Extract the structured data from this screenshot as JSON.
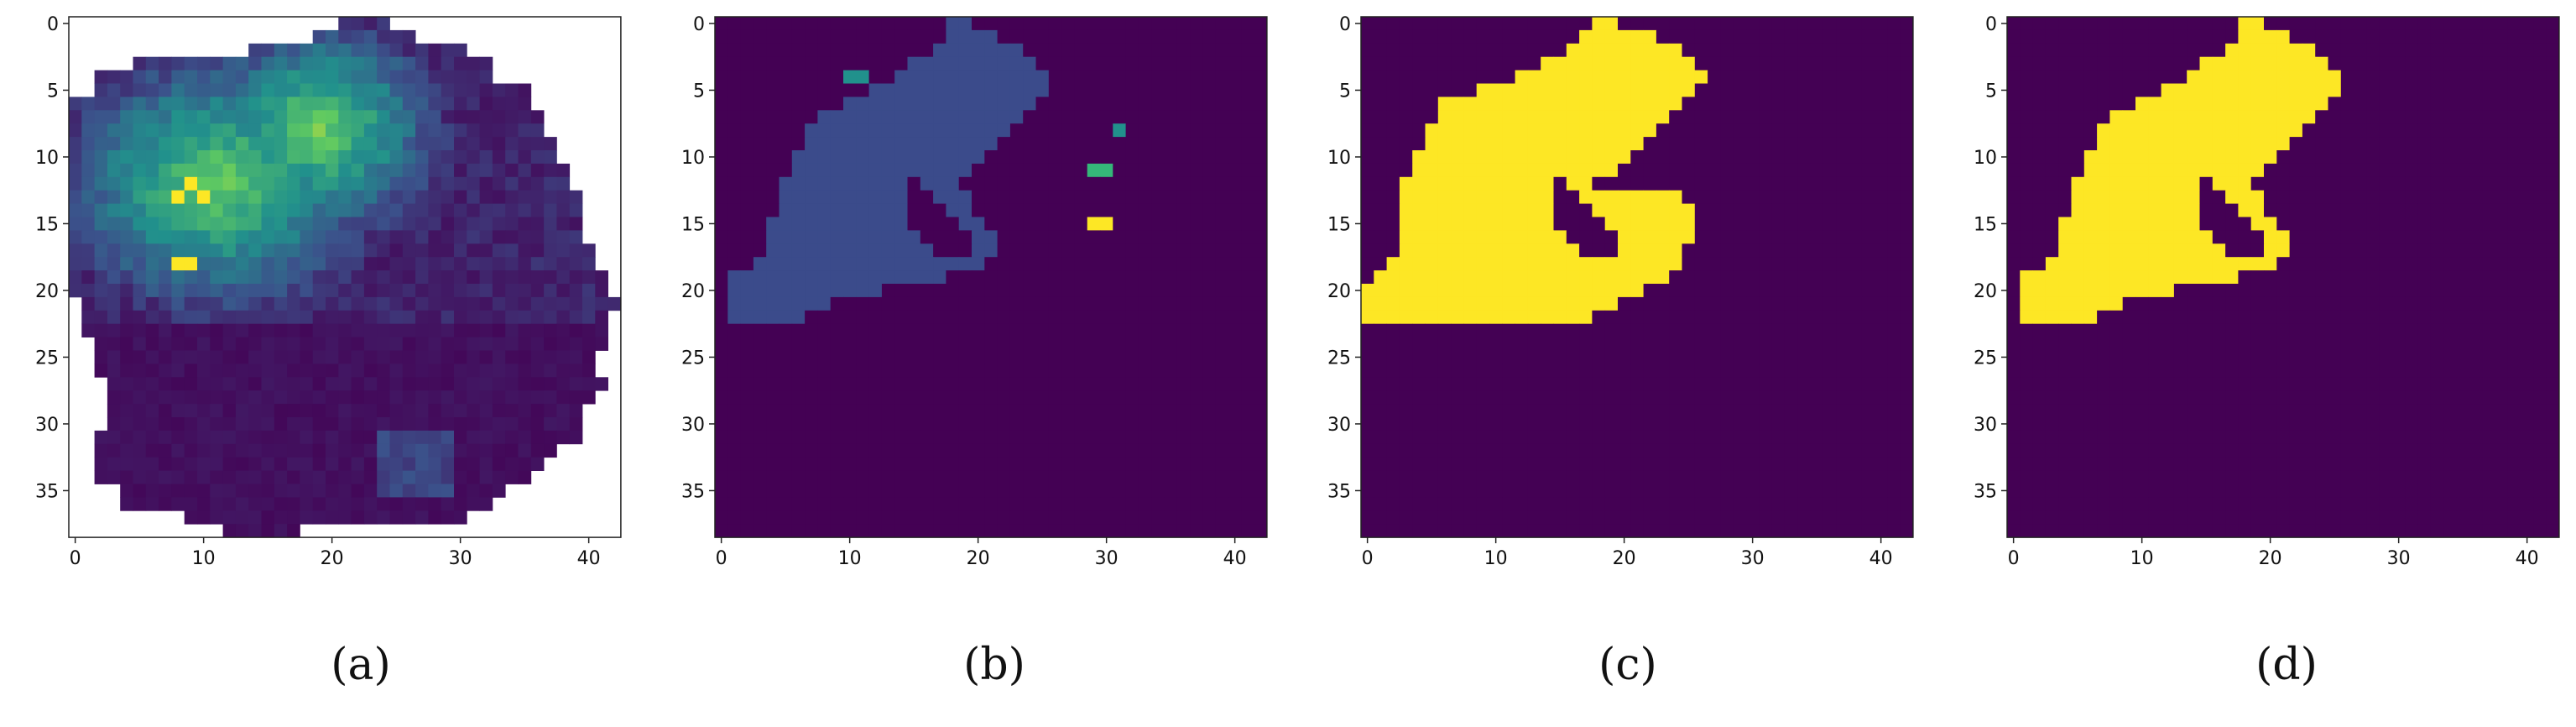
{
  "colors": {
    "background": "#440154",
    "blue_region": "#3b4b8b",
    "teal": "#21918c",
    "green": "#35b779",
    "yellow": "#fde725"
  },
  "chart_data": [
    {
      "type": "heatmap",
      "caption": "(a)",
      "xlim": [
        -0.5,
        42.5
      ],
      "ylim": [
        38.5,
        -0.5
      ],
      "xticks": [
        0,
        10,
        20,
        30,
        40
      ],
      "yticks": [
        0,
        5,
        10,
        15,
        20,
        25,
        30,
        35
      ],
      "xtick_labels": [
        "0",
        "10",
        "20",
        "30",
        "40"
      ],
      "ytick_labels": [
        "0",
        "5",
        "10",
        "15",
        "20",
        "25",
        "30",
        "35"
      ],
      "colormap": "viridis",
      "mask_value": "white",
      "high_intensity_cells": [
        [
          12,
          9
        ],
        [
          13,
          8
        ],
        [
          13,
          10
        ],
        [
          18,
          8
        ],
        [
          18,
          9
        ]
      ]
    },
    {
      "type": "heatmap",
      "caption": "(b)",
      "xlim": [
        -0.5,
        42.5
      ],
      "ylim": [
        38.5,
        -0.5
      ],
      "xticks": [
        0,
        10,
        20,
        30,
        40
      ],
      "yticks": [
        0,
        5,
        10,
        15,
        20,
        25,
        30,
        35
      ],
      "xtick_labels": [
        "0",
        "10",
        "20",
        "30",
        "40"
      ],
      "ytick_labels": [
        "0",
        "5",
        "10",
        "15",
        "20",
        "25",
        "30",
        "35"
      ],
      "classes": [
        "background",
        "region",
        "teal-cluster",
        "green-cluster",
        "yellow-cluster"
      ],
      "small_clusters": [
        {
          "class": "teal",
          "rows": [
            4,
            4
          ],
          "cols": [
            10,
            11
          ]
        },
        {
          "class": "teal",
          "rows": [
            8,
            8
          ],
          "cols": [
            31,
            31
          ]
        },
        {
          "class": "green",
          "rows": [
            11,
            11
          ],
          "cols": [
            29,
            30
          ]
        },
        {
          "class": "yellow",
          "rows": [
            15,
            15
          ],
          "cols": [
            29,
            30
          ]
        }
      ]
    },
    {
      "type": "heatmap",
      "caption": "(c)",
      "xlim": [
        -0.5,
        42.5
      ],
      "ylim": [
        38.5,
        -0.5
      ],
      "xticks": [
        0,
        10,
        20,
        30,
        40
      ],
      "yticks": [
        0,
        5,
        10,
        15,
        20,
        25,
        30,
        35
      ],
      "xtick_labels": [
        "0",
        "10",
        "20",
        "30",
        "40"
      ],
      "ytick_labels": [
        "0",
        "5",
        "10",
        "15",
        "20",
        "25",
        "30",
        "35"
      ],
      "classes": [
        "background",
        "region"
      ]
    },
    {
      "type": "heatmap",
      "caption": "(d)",
      "xlim": [
        -0.5,
        42.5
      ],
      "ylim": [
        38.5,
        -0.5
      ],
      "xticks": [
        0,
        10,
        20,
        30,
        40
      ],
      "yticks": [
        0,
        5,
        10,
        15,
        20,
        25,
        30,
        35
      ],
      "xtick_labels": [
        "0",
        "10",
        "20",
        "30",
        "40"
      ],
      "ytick_labels": [
        "0",
        "5",
        "10",
        "15",
        "20",
        "25",
        "30",
        "35"
      ],
      "classes": [
        "background",
        "region"
      ]
    }
  ]
}
